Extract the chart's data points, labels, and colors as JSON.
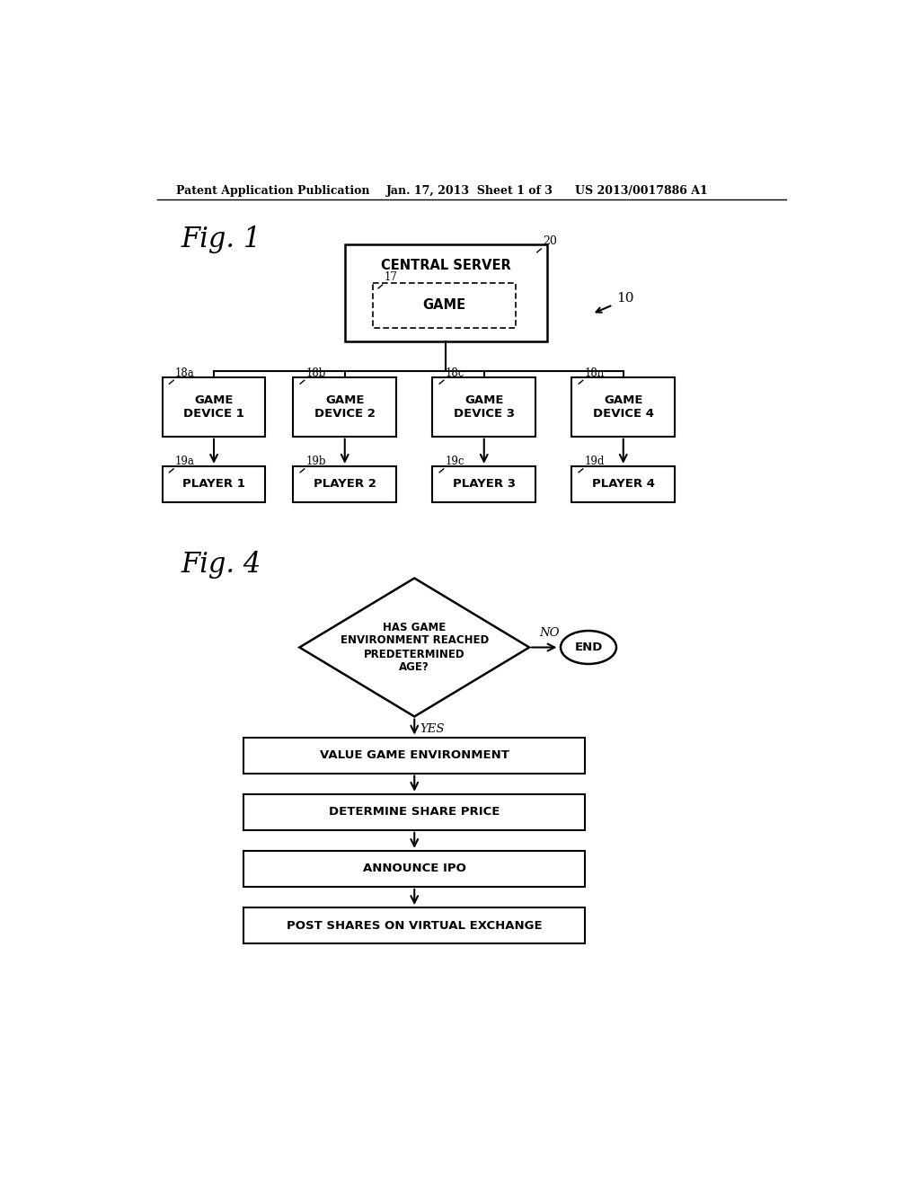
{
  "bg_color": "#ffffff",
  "text_color": "#000000",
  "line_color": "#000000",
  "header_left": "Patent Application Publication",
  "header_mid": "Jan. 17, 2013  Sheet 1 of 3",
  "header_right": "US 2013/0017886 A1",
  "fig1_label": "Fig. 1",
  "fig4_label": "Fig. 4",
  "ref_10": "10",
  "ref_20": "20",
  "ref_17": "17",
  "ref_18a": "18a",
  "ref_18b": "18b",
  "ref_18c": "18c",
  "ref_18n": "18n",
  "ref_19a": "19a",
  "ref_19b": "19b",
  "ref_19c": "19c",
  "ref_19d": "19d",
  "central_server": "CENTRAL SERVER",
  "game": "GAME",
  "game_device_1": "GAME\nDEVICE 1",
  "game_device_2": "GAME\nDEVICE 2",
  "game_device_3": "GAME\nDEVICE 3",
  "game_device_4": "GAME\nDEVICE 4",
  "player_1": "PLAYER 1",
  "player_2": "PLAYER 2",
  "player_3": "PLAYER 3",
  "player_4": "PLAYER 4",
  "diamond_text": "HAS GAME\nENVIRONMENT REACHED\nPREDETERMINED\nAGE?",
  "no_label": "NO",
  "yes_label": "YES",
  "end_label": "END",
  "box1_text": "VALUE GAME ENVIRONMENT",
  "box2_text": "DETERMINE SHARE PRICE",
  "box3_text": "ANNOUNCE IPO",
  "box4_text": "POST SHARES ON VIRTUAL EXCHANGE"
}
